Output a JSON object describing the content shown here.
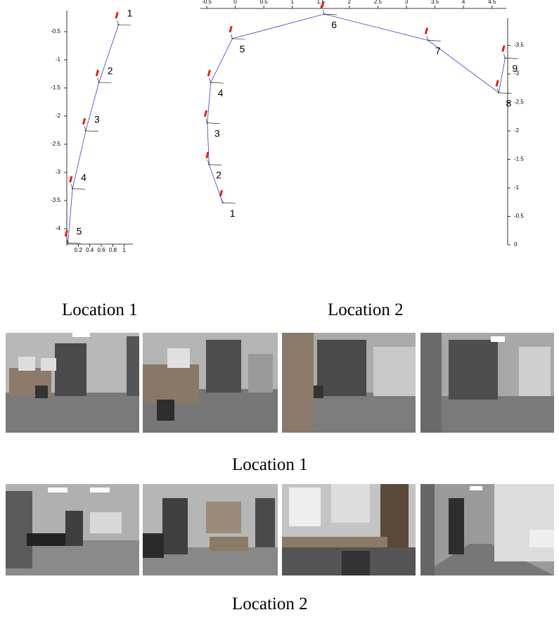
{
  "chart_data": [
    {
      "type": "line",
      "x": [
        0.9,
        0.56,
        0.33,
        0.1,
        0.02
      ],
      "series": [
        {
          "color": "#3a3acc",
          "values": [
            -0.375,
            -1.4,
            -2.26,
            -3.29,
            -4.25
          ]
        }
      ],
      "point_labels": [
        "1",
        "2",
        "3",
        "4",
        "5"
      ],
      "xlim": [
        0,
        1.15
      ],
      "ylim": [
        -4.3,
        0
      ],
      "xticks": [
        0.2,
        0.4,
        0.6,
        0.8,
        1
      ],
      "yticks": [
        -0.5,
        -1,
        -1.5,
        -2,
        -2.5,
        -3,
        -3.5,
        -4
      ],
      "x_axis_side": "bottom",
      "y_axis_side": "left"
    },
    {
      "type": "line",
      "x": [
        -0.22,
        -0.46,
        -0.49,
        -0.43,
        -0.05,
        1.56,
        3.38,
        4.62,
        4.73
      ],
      "series": [
        {
          "color": "#3a3acc",
          "values": [
            -0.74,
            -1.41,
            -2.14,
            -2.85,
            -3.62,
            -4.05,
            -3.59,
            -2.67,
            -3.28
          ]
        }
      ],
      "point_labels": [
        "1",
        "2",
        "3",
        "4",
        "5",
        "6",
        "7",
        "8",
        "9"
      ],
      "xlim": [
        -0.55,
        4.75
      ],
      "ylim": [
        0,
        -4.1
      ],
      "xticks": [
        -0.5,
        0,
        0.5,
        1,
        1.5,
        2,
        2.5,
        3,
        3.5,
        4,
        4.5
      ],
      "yticks": [
        0,
        -0.5,
        -1,
        -1.5,
        -2,
        -2.5,
        -3,
        -3.5
      ],
      "x_axis_side": "top",
      "y_axis_side": "right"
    }
  ],
  "captions": [
    "Location 1",
    "Location 2",
    "Location 1",
    "Location 2"
  ]
}
